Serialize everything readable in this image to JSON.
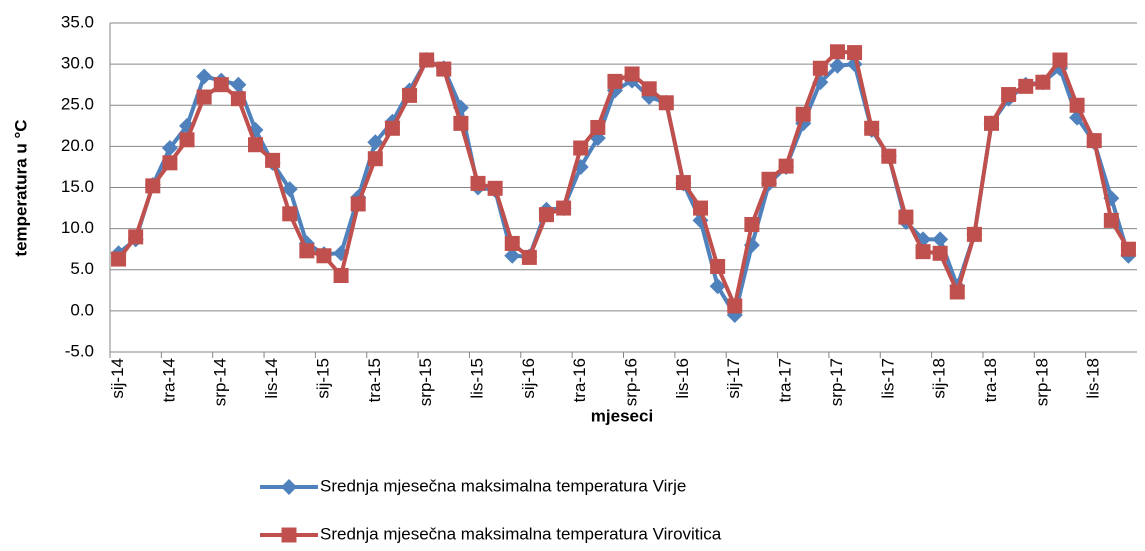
{
  "chart_data": {
    "type": "line",
    "y_label": "temperatura u °C",
    "x_label": "mjeseci",
    "categories": [
      "sij-14",
      null,
      null,
      "tra-14",
      null,
      null,
      "srp-14",
      null,
      null,
      "lis-14",
      null,
      null,
      "sij-15",
      null,
      null,
      "tra-15",
      null,
      null,
      "srp-15",
      null,
      null,
      "lis-15",
      null,
      null,
      "sij-16",
      null,
      null,
      "tra-16",
      null,
      null,
      "srp-16",
      null,
      null,
      "lis-16",
      null,
      null,
      "sij-17",
      null,
      null,
      "tra-17",
      null,
      null,
      "srp-17",
      null,
      null,
      "lis-17",
      null,
      null,
      "sij-18",
      null,
      null,
      "tra-18",
      null,
      null,
      "srp-18",
      null,
      null,
      "lis-18",
      null,
      null
    ],
    "series": [
      {
        "name": "Srednja mjesečna maksimalna temperatura Virje",
        "color": "#4f81bd",
        "marker": "diamond",
        "values": [
          7.0,
          8.7,
          15.3,
          19.8,
          22.5,
          28.5,
          28.0,
          27.5,
          22.0,
          18.0,
          14.8,
          8.2,
          6.9,
          7.0,
          13.8,
          20.5,
          23.0,
          26.8,
          30.5,
          29.5,
          24.7,
          15.0,
          14.7,
          6.7,
          6.6,
          12.3,
          12.5,
          17.5,
          21.0,
          26.8,
          28.0,
          26.0,
          25.3,
          15.5,
          11.0,
          3.0,
          -0.5,
          8.0,
          15.5,
          17.5,
          22.8,
          27.8,
          29.8,
          30.0,
          22.0,
          18.8,
          10.8,
          8.7,
          8.7,
          3.0,
          9.3,
          22.8,
          25.8,
          27.5,
          27.8,
          29.5,
          23.5,
          20.5,
          13.7,
          6.7
        ]
      },
      {
        "name": "Srednja mjesečna maksimalna temperatura Virovitica",
        "color": "#c0504d",
        "marker": "square",
        "values": [
          6.3,
          9.0,
          15.2,
          18.0,
          20.8,
          26.0,
          27.5,
          25.8,
          20.2,
          18.3,
          11.8,
          7.3,
          6.7,
          4.3,
          13.0,
          18.5,
          22.2,
          26.2,
          30.5,
          29.4,
          22.8,
          15.5,
          14.9,
          8.2,
          6.5,
          11.7,
          12.5,
          19.8,
          22.3,
          27.9,
          28.8,
          27.0,
          25.3,
          15.6,
          12.5,
          5.4,
          0.6,
          10.5,
          16.0,
          17.6,
          23.9,
          29.5,
          31.5,
          31.4,
          22.2,
          18.8,
          11.4,
          7.2,
          7.0,
          2.3,
          9.3,
          22.8,
          26.3,
          27.3,
          27.8,
          30.5,
          25.0,
          20.7,
          11.0,
          7.5
        ]
      }
    ],
    "ylim": [
      -5,
      35
    ],
    "yticks": [
      {
        "value": -5,
        "label": "-5.0"
      },
      {
        "value": 0,
        "label": "0.0"
      },
      {
        "value": 5,
        "label": "5.0"
      },
      {
        "value": 10,
        "label": "10.0"
      },
      {
        "value": 15,
        "label": "15.0"
      },
      {
        "value": 20,
        "label": "20.0"
      },
      {
        "value": 25,
        "label": "25.0"
      },
      {
        "value": 30,
        "label": "30.0"
      },
      {
        "value": 35,
        "label": "35.0"
      }
    ],
    "grid": true,
    "legend": "bottom"
  }
}
